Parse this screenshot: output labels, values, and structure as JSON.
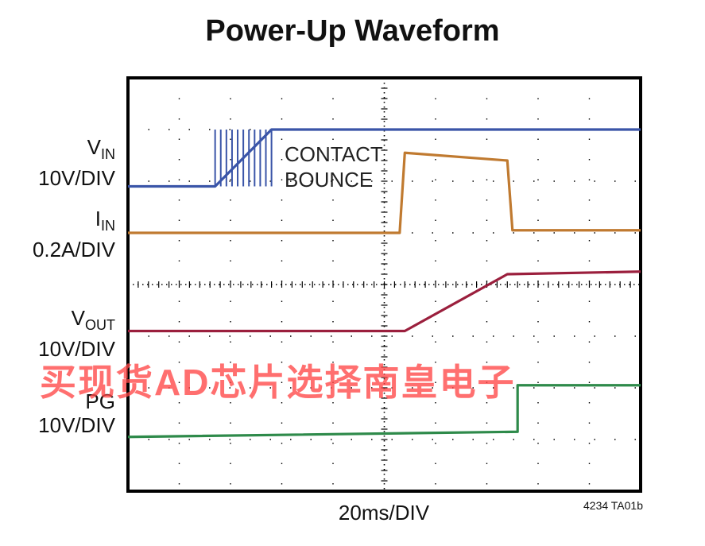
{
  "chart_data": {
    "type": "line",
    "title": "Power-Up Waveform",
    "xlabel": "20ms/DIV",
    "x_divisions": 10,
    "y_divisions": 8,
    "grid": true,
    "figure_id": "4234 TA01b",
    "annotation": [
      "CONTACT",
      "BOUNCE"
    ],
    "channels": [
      {
        "name": "V",
        "sub": "IN",
        "scale": "10V/DIV",
        "color": "#3a55a8"
      },
      {
        "name": "I",
        "sub": "IN",
        "scale": "0.2A/DIV",
        "color": "#c07a30"
      },
      {
        "name": "V",
        "sub": "OUT",
        "scale": "10V/DIV",
        "color": "#9b1f3d"
      },
      {
        "name": "PG",
        "sub": "",
        "scale": "10V/DIV",
        "color": "#2e8a4a"
      }
    ],
    "series": [
      {
        "channel": "VIN",
        "x": [
          0,
          1.7,
          2.8,
          10
        ],
        "y": [
          5.9,
          5.9,
          7.0,
          7.0
        ],
        "bounce_x": [
          1.7,
          2.8
        ]
      },
      {
        "channel": "IIN",
        "x": [
          0,
          5.3,
          5.4,
          7.4,
          7.5,
          10
        ],
        "y": [
          5.0,
          5.0,
          6.55,
          6.4,
          5.05,
          5.05
        ]
      },
      {
        "channel": "VOUT",
        "x": [
          0,
          5.4,
          7.4,
          10
        ],
        "y": [
          3.1,
          3.1,
          4.2,
          4.25
        ]
      },
      {
        "channel": "PG",
        "x": [
          0,
          7.6,
          7.6,
          10
        ],
        "y": [
          1.05,
          1.15,
          2.05,
          2.05
        ]
      }
    ]
  },
  "watermark": "买现货AD芯片选择南皇电子"
}
